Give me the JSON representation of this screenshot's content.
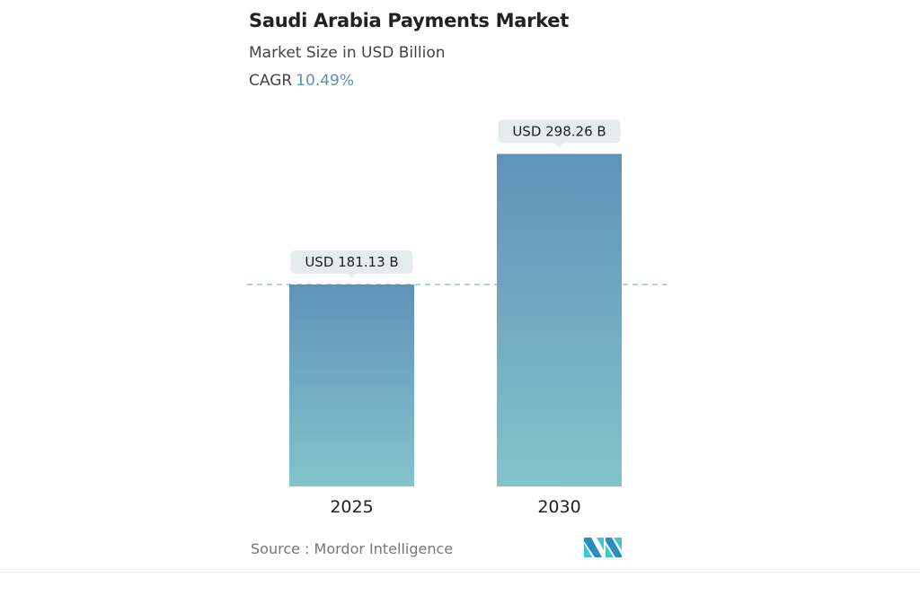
{
  "header": {
    "title": "Saudi Arabia Payments Market",
    "subtitle": "Market Size in USD Billion",
    "cagr_label": "CAGR",
    "cagr_value": "10.49%"
  },
  "chart_data": {
    "type": "bar",
    "title": "Saudi Arabia Payments Market",
    "subtitle": "Market Size in USD Billion",
    "categories": [
      "2025",
      "2030"
    ],
    "values": [
      181.13,
      298.26
    ],
    "data_labels": [
      "USD 181.13 B",
      "USD 298.26 B"
    ],
    "unit": "USD Billion",
    "reference_line": 181.13,
    "grid": false,
    "colors": {
      "bar_top": "#5f92ba",
      "bar_bottom": "#82c4cb",
      "label_bg": "#e6ecee",
      "cagr": "#5a8fc0"
    }
  },
  "footer": {
    "source": "Source :  Mordor Intelligence",
    "logo_text": "MI"
  }
}
